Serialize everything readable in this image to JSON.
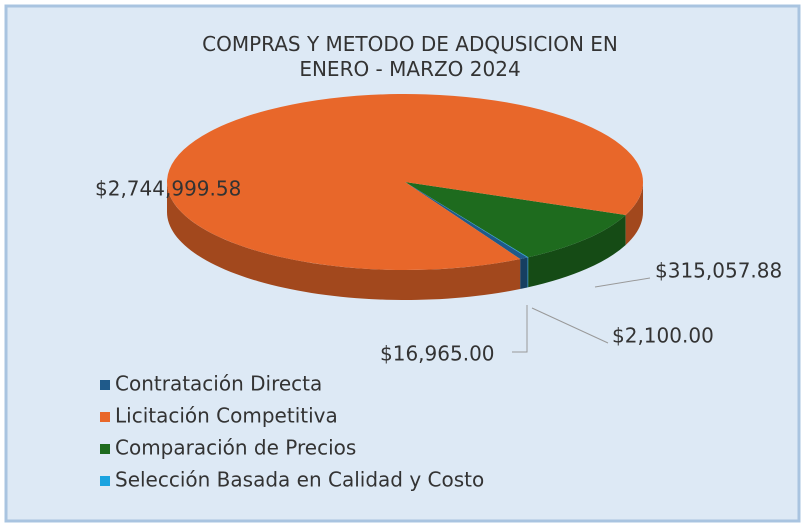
{
  "chart_data": {
    "type": "pie3d",
    "title": "COMPRAS Y METODO DE ADQUSICION EN ENERO - MARZO 2024",
    "categories": [
      "Contratación Directa",
      "Licitación Competitiva",
      "Comparación de Precios",
      "Selección Basada en Calidad y Costo"
    ],
    "values": [
      16965.0,
      2744999.58,
      315057.88,
      2100.0
    ],
    "value_labels": [
      "$16,965.00",
      "$2,744,999.58",
      "$315,057.88",
      "$2,100.00"
    ],
    "colors": [
      "#1f5a8a",
      "#e8672a",
      "#1e6b1e",
      "#1aa3e0"
    ],
    "legend": "bottom-left"
  }
}
